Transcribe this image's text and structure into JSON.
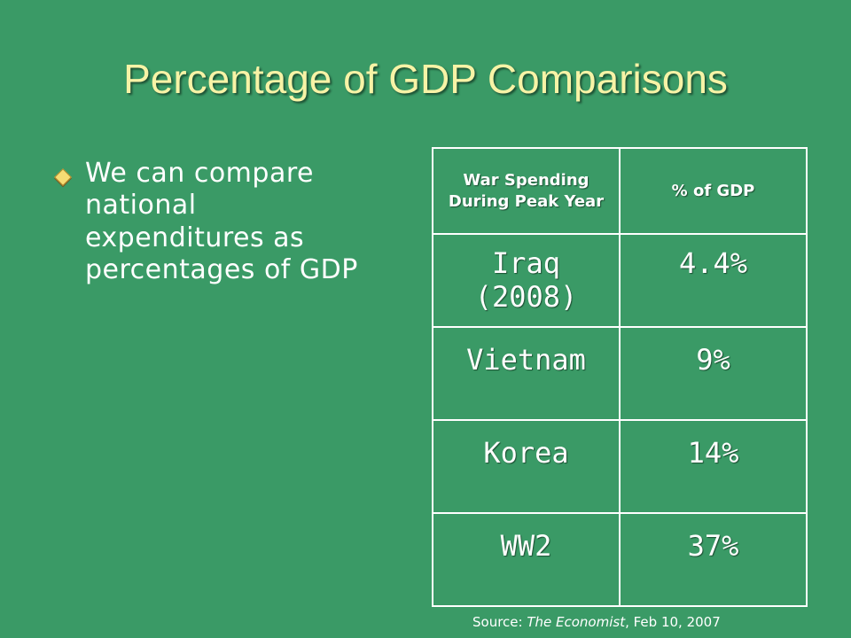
{
  "slide": {
    "title": "Percentage of GDP Comparisons",
    "bullet_text": "We can compare national expenditures as percentages of GDP",
    "bullet_icon": "diamond-bullet-icon"
  },
  "table": {
    "headers": [
      "War Spending During Peak Year",
      "% of GDP"
    ],
    "rows": [
      {
        "war": "Iraq (2008)",
        "percent": "4.4%"
      },
      {
        "war": "Vietnam",
        "percent": "9%"
      },
      {
        "war": "Korea",
        "percent": "14%"
      },
      {
        "war": "WW2",
        "percent": "37%"
      }
    ]
  },
  "source": {
    "prefix": "Source: ",
    "publication": "The Economist",
    "date": ", Feb 10, 2007"
  },
  "colors": {
    "background": "#3a9a66",
    "title": "#f7f3a6",
    "text": "#ffffff",
    "bullet": "#f6dc74"
  }
}
